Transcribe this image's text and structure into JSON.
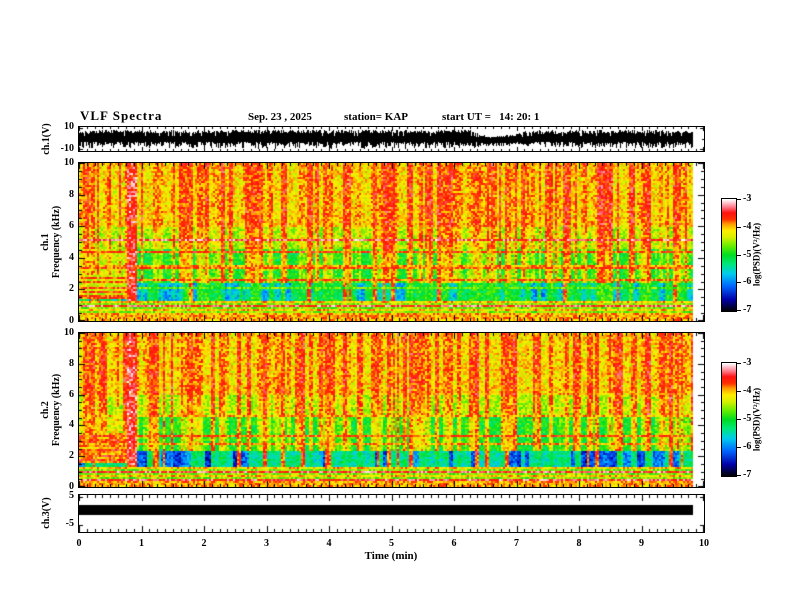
{
  "header": {
    "title": "VLF Spectra",
    "date": "Sep. 23 , 2025",
    "station": "station= KAP",
    "start_ut": "start UT =   14: 20: 1"
  },
  "panels": {
    "ch1_wave": {
      "ylabel": "ch.1(V)",
      "ymax_label": "10",
      "ymin_label": "-10",
      "yrange": [
        -10,
        10
      ]
    },
    "ch1_spec": {
      "ylabel_line1": "ch.1",
      "ylabel_line2": "Frequency (kHz)",
      "yrange": [
        0,
        10
      ],
      "yticks": [
        0,
        2,
        4,
        6,
        8,
        10
      ]
    },
    "ch2_spec": {
      "ylabel_line1": "ch.2",
      "ylabel_line2": "Frequency (kHz)",
      "yrange": [
        0,
        10
      ],
      "yticks": [
        0,
        2,
        4,
        6,
        8,
        10
      ]
    },
    "ch3_wave": {
      "ylabel": "ch.3(V)",
      "ymax_label": "5",
      "ymin_label": "-5"
    }
  },
  "xaxis": {
    "label": "Time (min)",
    "range": [
      0,
      10
    ],
    "ticks": [
      0,
      1,
      2,
      3,
      4,
      5,
      6,
      7,
      8,
      9,
      10
    ],
    "minor_step": 0.125
  },
  "colorbar": {
    "label": "log(PSD)(V²/Hz)",
    "ticks": [
      -3,
      -4,
      -5,
      -6,
      -7
    ],
    "range": [
      -7,
      -3
    ],
    "colormap_stops": [
      [
        0.0,
        "#000008"
      ],
      [
        0.1,
        "#0000aa"
      ],
      [
        0.22,
        "#0066ff"
      ],
      [
        0.33,
        "#00ccee"
      ],
      [
        0.42,
        "#00e87a"
      ],
      [
        0.5,
        "#00dd22"
      ],
      [
        0.58,
        "#66ee00"
      ],
      [
        0.66,
        "#d8f000"
      ],
      [
        0.72,
        "#ffee00"
      ],
      [
        0.78,
        "#ff9900"
      ],
      [
        0.82,
        "#ff3300"
      ],
      [
        0.88,
        "#ff1111"
      ],
      [
        0.93,
        "#ff7788"
      ],
      [
        0.97,
        "#ffc4cc"
      ],
      [
        1.0,
        "#ffffff"
      ]
    ]
  },
  "chart_data": [
    {
      "type": "line",
      "name": "ch1_voltage_waveform",
      "ylabel": "ch.1(V)",
      "xlabel": "Time (min)",
      "xlim": [
        0,
        10
      ],
      "ylim": [
        -10,
        10
      ],
      "data_end_min": 9.82,
      "description": "dense broadband noise filling approximately -8 to +9 V for the whole record, brief amplitude dip near 6.5-7.0 min",
      "envelope_keyframes": [
        [
          0,
          8.2,
          0.5
        ],
        [
          6.3,
          8.2,
          0.5
        ],
        [
          6.5,
          4.5,
          -1.5
        ],
        [
          6.95,
          5.0,
          -1.0
        ],
        [
          7.15,
          7.5,
          0.5
        ],
        [
          9.82,
          8.2,
          0.5
        ]
      ]
    },
    {
      "type": "heatmap",
      "name": "ch1_spectrogram",
      "ylabel": "ch.1 Frequency (kHz)",
      "xlim": [
        0,
        10
      ],
      "ylim": [
        0,
        10
      ],
      "value_range": [
        -7,
        -3
      ],
      "data_end_min": 9.82,
      "bands": [
        {
          "f": [
            6.0,
            10.0
          ],
          "base": -4.15,
          "streak_gain": 0.55
        },
        {
          "f": [
            4.6,
            6.0
          ],
          "base": -4.5,
          "streak_gain": 0.85
        },
        {
          "f": [
            2.35,
            4.6
          ],
          "base": -5.0,
          "streak_gain": 1.15
        },
        {
          "f": [
            1.25,
            2.35
          ],
          "base": -5.15,
          "streak_gain": 0.3,
          "cyan_patch_depth": 0.9,
          "deep_pass": true
        },
        {
          "f": [
            0.45,
            1.25
          ],
          "base": -4.35,
          "striped": true
        },
        {
          "f": [
            0.0,
            0.45
          ],
          "base": -3.95
        }
      ],
      "hlines": [
        {
          "f": 2.6,
          "w": 0.1,
          "v": -3.75
        },
        {
          "f": 2.76,
          "w": 0.07,
          "v": -3.95
        },
        {
          "f": 3.32,
          "w": 0.1,
          "v": -3.75
        },
        {
          "f": 3.48,
          "w": 0.07,
          "v": -3.95
        },
        {
          "f": 4.42,
          "w": 0.12,
          "v": -3.7
        },
        {
          "f": 4.58,
          "w": 0.07,
          "v": -3.95
        },
        {
          "f": 5.15,
          "w": 0.05,
          "v": -3.35
        },
        {
          "f": 2.1,
          "w": 0.05,
          "v": -4.7
        }
      ],
      "startup_event": {
        "t_end": 0.78,
        "pink_col_end": 0.93,
        "f0": 1.35,
        "f1": 2.95,
        "v_hi": -3.7,
        "v_lo": -4.3,
        "boost_f": [
          2.95,
          4.6
        ],
        "boost_v": -4.35
      }
    },
    {
      "type": "heatmap",
      "name": "ch2_spectrogram",
      "ylabel": "ch.2 Frequency (kHz)",
      "xlim": [
        0,
        10
      ],
      "ylim": [
        0,
        10
      ],
      "value_range": [
        -7,
        -3
      ],
      "data_end_min": 9.82,
      "bands": [
        {
          "f": [
            6.0,
            10.0
          ],
          "base": -4.15,
          "streak_gain": 0.55
        },
        {
          "f": [
            4.6,
            6.0
          ],
          "base": -4.5,
          "streak_gain": 0.85
        },
        {
          "f": [
            2.35,
            4.6
          ],
          "base": -5.0,
          "streak_gain": 1.15
        },
        {
          "f": [
            1.25,
            2.35
          ],
          "base": -5.45,
          "streak_gain": 0.3,
          "cyan_patch_depth": 1.2,
          "deep_pass": true
        },
        {
          "f": [
            0.45,
            1.25
          ],
          "base": -4.35,
          "striped": true
        },
        {
          "f": [
            0.0,
            0.45
          ],
          "base": -3.95
        }
      ],
      "hlines": [
        {
          "f": 2.6,
          "w": 0.1,
          "v": -3.75
        },
        {
          "f": 2.76,
          "w": 0.07,
          "v": -3.95
        },
        {
          "f": 3.32,
          "w": 0.1,
          "v": -3.75
        },
        {
          "f": 3.48,
          "w": 0.07,
          "v": -3.95
        },
        {
          "f": 4.42,
          "w": 0.12,
          "v": -3.7
        },
        {
          "f": 4.58,
          "w": 0.07,
          "v": -3.95
        },
        {
          "f": 2.3,
          "w": 0.05,
          "v": -3.45
        },
        {
          "f": 2.1,
          "w": 0.05,
          "v": -4.7
        }
      ],
      "startup_event": {
        "t_end": 0.78,
        "pink_col_end": 0.93,
        "f0": 1.5,
        "f1": 3.55,
        "v_hi": -3.65,
        "v_lo": -3.95,
        "boost_f": [
          3.55,
          4.6
        ],
        "boost_v": -4.35
      }
    },
    {
      "type": "line",
      "name": "ch3_voltage_waveform",
      "ylabel": "ch.3(V)",
      "xlim": [
        0,
        10
      ],
      "ylim": [
        -5,
        5
      ],
      "data_end_min": 9.82,
      "description": "constant thick black level (saturated square trace) from 0 to ~9.8 min",
      "bar": {
        "t": [
          0,
          9.82
        ],
        "v": [
          -1.5,
          2.2
        ]
      }
    }
  ]
}
